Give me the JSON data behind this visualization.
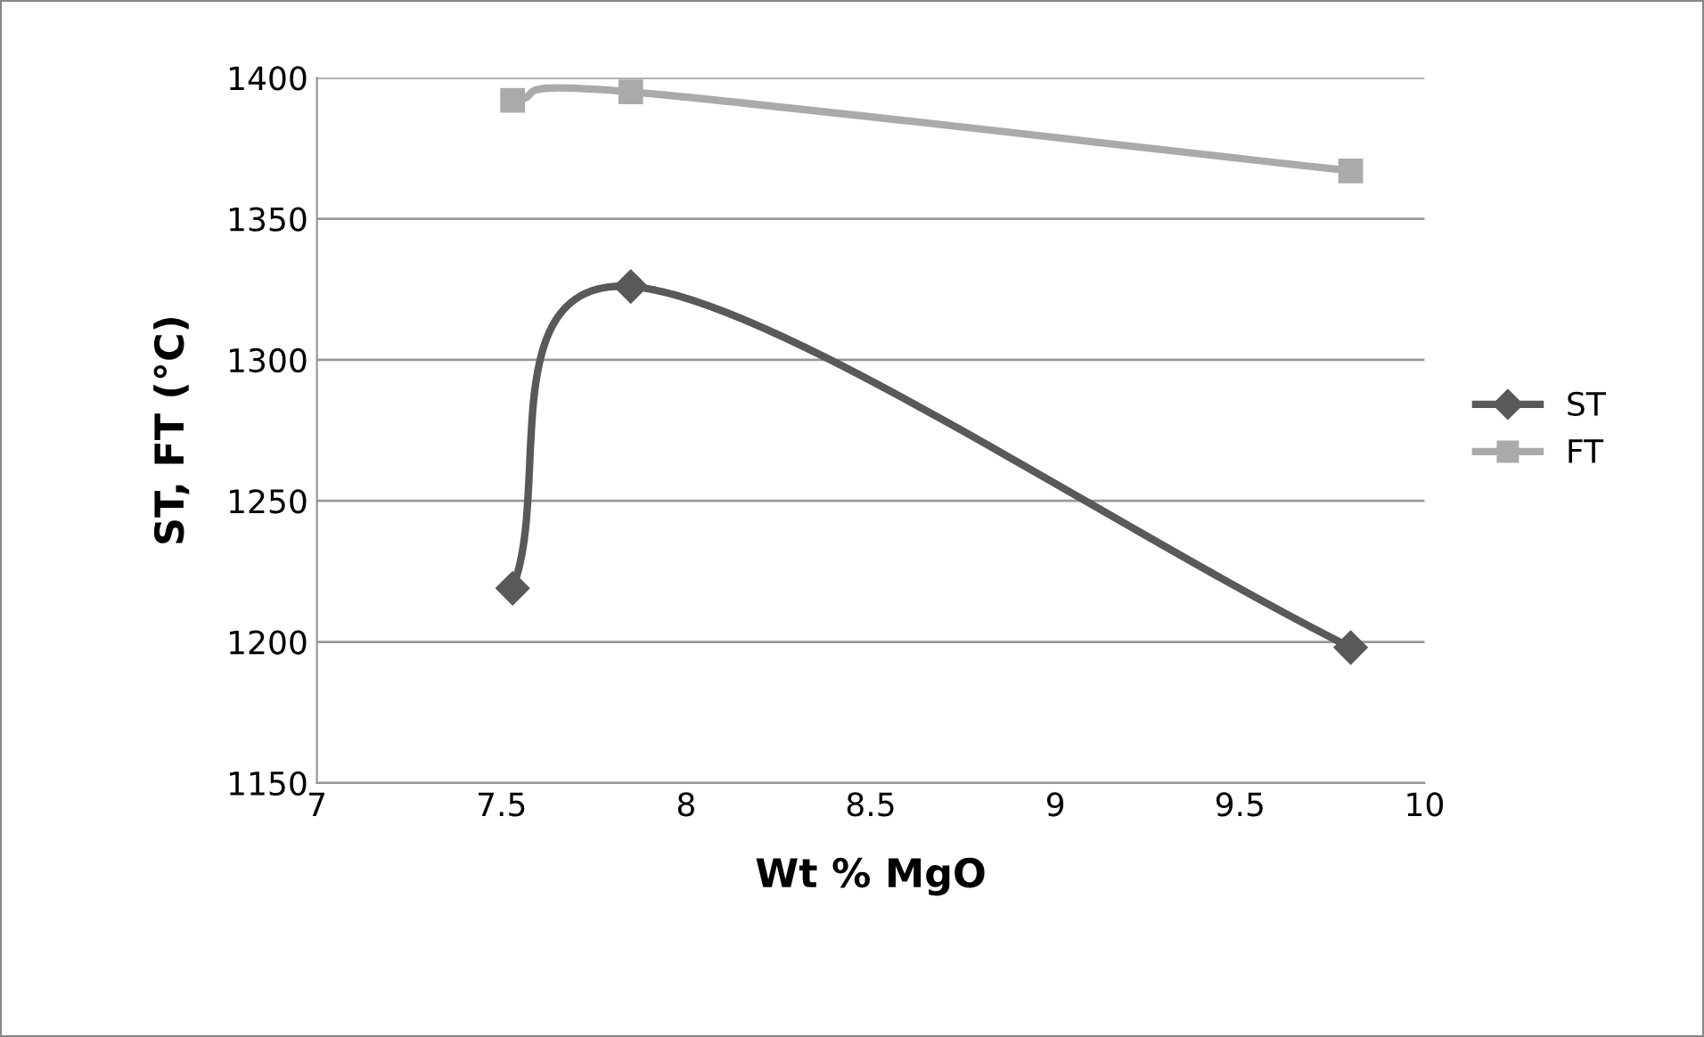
{
  "chart_data": {
    "type": "line",
    "xlabel": "Wt % MgO",
    "ylabel": "ST, FT (°C)",
    "xlim": [
      7,
      10
    ],
    "xticks": [
      7,
      7.5,
      8,
      8.5,
      9,
      9.5,
      10
    ],
    "ylim": [
      1150,
      1400
    ],
    "yticks": [
      1150,
      1200,
      1250,
      1300,
      1350,
      1400
    ],
    "grid": "y",
    "legend": "right",
    "series": [
      {
        "name": "ST",
        "color": "#595959",
        "marker": "diamond",
        "x": [
          7.53,
          7.85,
          9.8
        ],
        "values": [
          1219,
          1326,
          1198
        ]
      },
      {
        "name": "FT",
        "color": "#aaaaaa",
        "marker": "square",
        "x": [
          7.53,
          7.85,
          9.8
        ],
        "values": [
          1392,
          1395,
          1367
        ]
      }
    ]
  }
}
